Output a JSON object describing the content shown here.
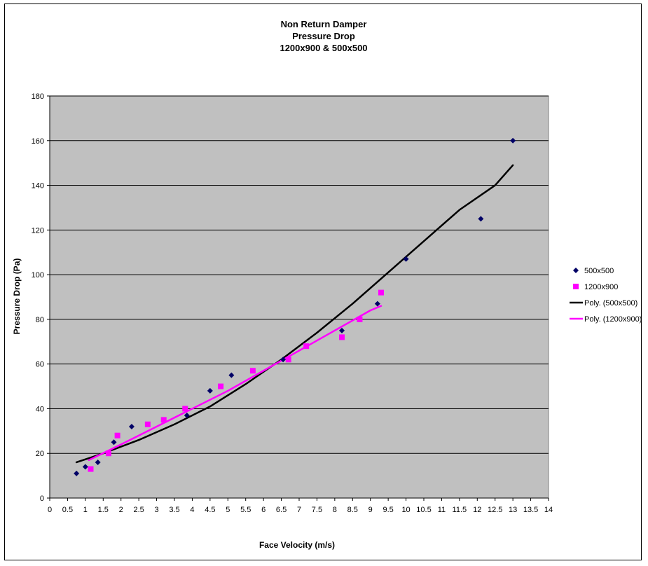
{
  "chart_data": {
    "type": "scatter",
    "title_lines": [
      "Non Return Damper",
      "Pressure Drop",
      "1200x900 & 500x500"
    ],
    "xlabel": "Face Velocity (m/s)",
    "ylabel": "Pressure Drop (Pa)",
    "xlim": [
      0,
      14
    ],
    "ylim": [
      0,
      180
    ],
    "x_ticks": [
      "0",
      "0.5",
      "1",
      "1.5",
      "2",
      "2.5",
      "3",
      "3.5",
      "4",
      "4.5",
      "5",
      "5.5",
      "6",
      "6.5",
      "7",
      "7.5",
      "8",
      "8.5",
      "9",
      "9.5",
      "10",
      "10.5",
      "11",
      "11.5",
      "12",
      "12.5",
      "13",
      "13.5",
      "14"
    ],
    "y_ticks": [
      "0",
      "20",
      "40",
      "60",
      "80",
      "100",
      "120",
      "140",
      "160",
      "180"
    ],
    "grid": "horizontal",
    "plot_background": "#c0c0c0",
    "legend_position": "right",
    "series": [
      {
        "name": "500x500",
        "kind": "points",
        "marker": "diamond",
        "color": "#000066",
        "points": [
          [
            0.75,
            11
          ],
          [
            1.0,
            14
          ],
          [
            1.35,
            16
          ],
          [
            1.8,
            25
          ],
          [
            2.3,
            32
          ],
          [
            3.85,
            37
          ],
          [
            4.5,
            48
          ],
          [
            5.1,
            55
          ],
          [
            6.55,
            62
          ],
          [
            8.2,
            75
          ],
          [
            9.2,
            87
          ],
          [
            10.0,
            107
          ],
          [
            12.1,
            125
          ],
          [
            13.0,
            160
          ]
        ]
      },
      {
        "name": "1200x900",
        "kind": "points",
        "marker": "square",
        "color": "#ff00ff",
        "points": [
          [
            1.15,
            13
          ],
          [
            1.65,
            20
          ],
          [
            1.9,
            28
          ],
          [
            2.75,
            33
          ],
          [
            3.2,
            35
          ],
          [
            3.8,
            40
          ],
          [
            4.8,
            50
          ],
          [
            5.7,
            57
          ],
          [
            6.7,
            62
          ],
          [
            7.2,
            68
          ],
          [
            8.2,
            72
          ],
          [
            8.7,
            80
          ],
          [
            9.3,
            92
          ]
        ]
      },
      {
        "name": "Poly. (500x500)",
        "kind": "trend",
        "color": "#000000",
        "points": [
          [
            0.75,
            16
          ],
          [
            1.5,
            20
          ],
          [
            2.5,
            26
          ],
          [
            3.5,
            33
          ],
          [
            4.5,
            41
          ],
          [
            5.5,
            51
          ],
          [
            6.5,
            62
          ],
          [
            7.5,
            74
          ],
          [
            8.5,
            87
          ],
          [
            9.5,
            101
          ],
          [
            10.5,
            115
          ],
          [
            11.5,
            129
          ],
          [
            12.5,
            140
          ],
          [
            13.0,
            149
          ]
        ]
      },
      {
        "name": "Poly. (1200x900)",
        "kind": "trend",
        "color": "#ff00ff",
        "points": [
          [
            1.1,
            17
          ],
          [
            2.0,
            24
          ],
          [
            3.0,
            32
          ],
          [
            4.0,
            40
          ],
          [
            5.0,
            48
          ],
          [
            6.0,
            57
          ],
          [
            7.0,
            66
          ],
          [
            8.0,
            75
          ],
          [
            9.0,
            84
          ],
          [
            9.3,
            86
          ]
        ]
      }
    ]
  }
}
